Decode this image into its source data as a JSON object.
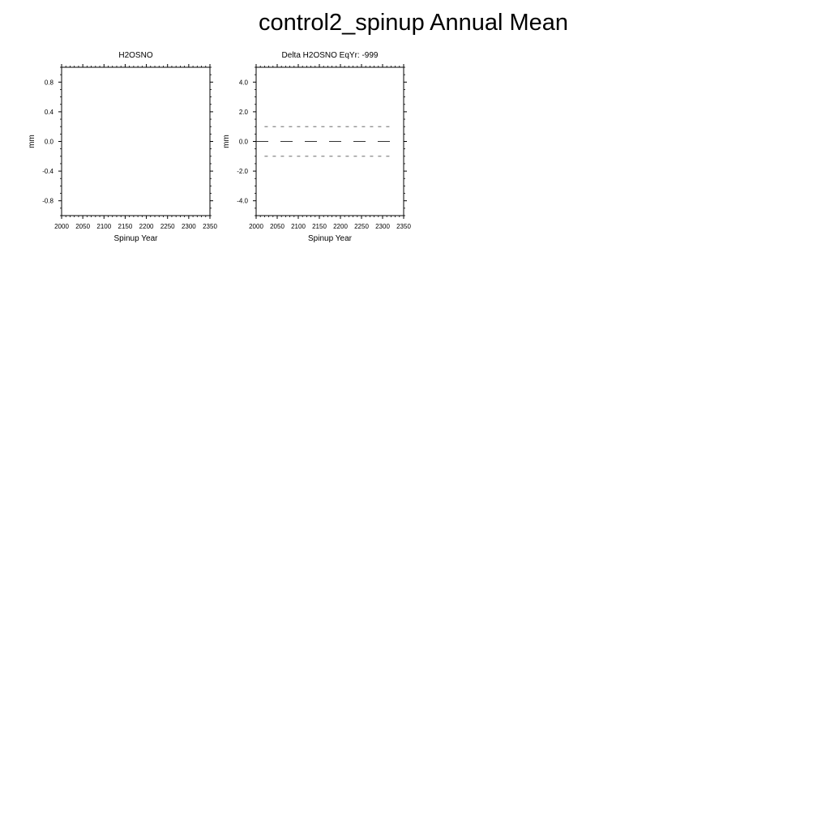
{
  "title": "control2_spinup Annual Mean",
  "chart_data": [
    {
      "type": "line",
      "title": "H2OSNO",
      "xlabel": "Spinup Year",
      "ylabel": "mm",
      "xlim": [
        2000,
        2350
      ],
      "ylim": [
        -1.0,
        1.0
      ],
      "xticks": [
        2000,
        2050,
        2100,
        2150,
        2200,
        2250,
        2300,
        2350
      ],
      "yticks": [
        "0.8",
        "0.4",
        "0.0",
        "-0.4",
        "-0.8"
      ],
      "ytick_values": [
        0.8,
        0.4,
        0.0,
        -0.4,
        -0.8
      ],
      "series": [],
      "reference_lines": []
    },
    {
      "type": "line",
      "title": "Delta H2OSNO EqYr: -999",
      "xlabel": "Spinup Year",
      "ylabel": "mm",
      "xlim": [
        2000,
        2350
      ],
      "ylim": [
        -5.0,
        5.0
      ],
      "xticks": [
        2000,
        2050,
        2100,
        2150,
        2200,
        2250,
        2300,
        2350
      ],
      "yticks": [
        "4.0",
        "2.0",
        "0.0",
        "-2.0",
        "-4.0"
      ],
      "ytick_values": [
        4.0,
        2.0,
        0.0,
        -2.0,
        -4.0
      ],
      "series": [],
      "reference_lines": [
        {
          "y": 1.0,
          "x": [
            2020,
            2320
          ],
          "style": "short-dash",
          "color": "#555555"
        },
        {
          "y": 0.0,
          "x": [
            2000,
            2320
          ],
          "style": "long-dash",
          "color": "#333333"
        },
        {
          "y": -1.0,
          "x": [
            2020,
            2320
          ],
          "style": "short-dash",
          "color": "#555555"
        }
      ]
    }
  ]
}
